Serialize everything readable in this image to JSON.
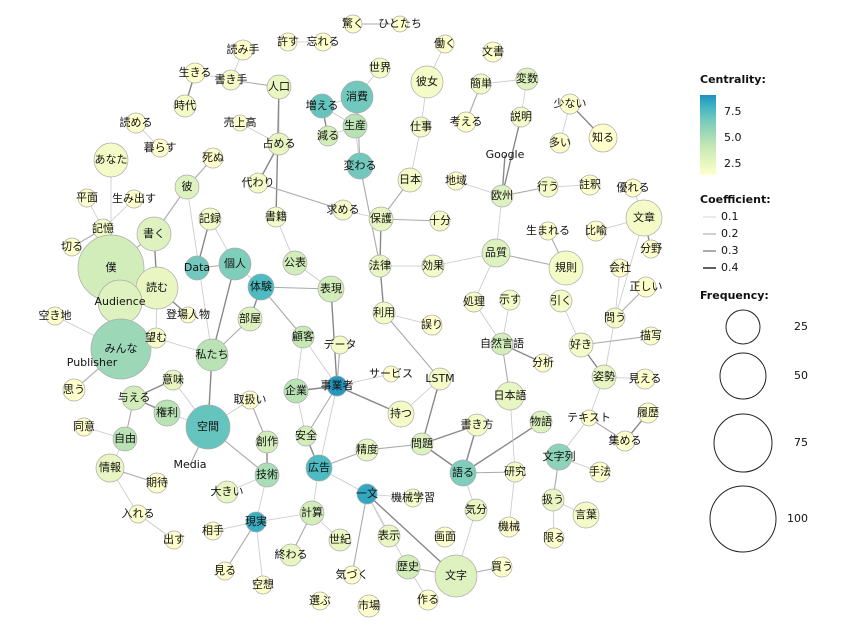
{
  "nodes": [
    {
      "label": "許す"
    },
    {
      "label": "忘れる"
    },
    {
      "label": "驚く"
    },
    {
      "label": "ひとたち"
    },
    {
      "label": "働く"
    },
    {
      "label": "文書"
    },
    {
      "label": "読み手"
    },
    {
      "label": "生きる"
    },
    {
      "label": "書き手"
    },
    {
      "label": "人口"
    },
    {
      "label": "世界"
    },
    {
      "label": "彼女"
    },
    {
      "label": "簡単"
    },
    {
      "label": "変数"
    },
    {
      "label": "少ない"
    },
    {
      "label": "時代"
    },
    {
      "label": "消費"
    },
    {
      "label": "増える"
    },
    {
      "label": "売上高"
    },
    {
      "label": "読める"
    },
    {
      "label": "暮らす"
    },
    {
      "label": "減る"
    },
    {
      "label": "生産"
    },
    {
      "label": "考える"
    },
    {
      "label": "説明"
    },
    {
      "label": "多い"
    },
    {
      "label": "知る"
    },
    {
      "label": "占める"
    },
    {
      "label": "仕事"
    },
    {
      "label": "変わる"
    },
    {
      "label": "あなた"
    },
    {
      "label": "死ぬ"
    },
    {
      "label": "Google"
    },
    {
      "label": "日本"
    },
    {
      "label": "地域"
    },
    {
      "label": "行う"
    },
    {
      "label": "註釈"
    },
    {
      "label": "優れる"
    },
    {
      "label": "彼"
    },
    {
      "label": "代わり"
    },
    {
      "label": "欧州"
    },
    {
      "label": "平面"
    },
    {
      "label": "生み出す"
    },
    {
      "label": "文章"
    },
    {
      "label": "記録"
    },
    {
      "label": "書籍"
    },
    {
      "label": "求める"
    },
    {
      "label": "保護"
    },
    {
      "label": "十分"
    },
    {
      "label": "生まれる"
    },
    {
      "label": "比喩"
    },
    {
      "label": "分野"
    },
    {
      "label": "記憶"
    },
    {
      "label": "書く"
    },
    {
      "label": "切る"
    },
    {
      "label": "僕"
    },
    {
      "label": "Data"
    },
    {
      "label": "個人"
    },
    {
      "label": "公表"
    },
    {
      "label": "法律"
    },
    {
      "label": "効果"
    },
    {
      "label": "品質"
    },
    {
      "label": "規則"
    },
    {
      "label": "会社"
    },
    {
      "label": "正しい"
    },
    {
      "label": "読む"
    },
    {
      "label": "体験"
    },
    {
      "label": "表現"
    },
    {
      "label": "処理"
    },
    {
      "label": "示す"
    },
    {
      "label": "引く"
    },
    {
      "label": "Audience"
    },
    {
      "label": "空き地"
    },
    {
      "label": "登場人物"
    },
    {
      "label": "部屋"
    },
    {
      "label": "利用"
    },
    {
      "label": "誤り"
    },
    {
      "label": "問う"
    },
    {
      "label": "描写"
    },
    {
      "label": "みんな"
    },
    {
      "label": "望む"
    },
    {
      "label": "顧客"
    },
    {
      "label": "データ"
    },
    {
      "label": "自然言語"
    },
    {
      "label": "好き"
    },
    {
      "label": "私たち"
    },
    {
      "label": "Publisher"
    },
    {
      "label": "分析"
    },
    {
      "label": "意味"
    },
    {
      "label": "サービス"
    },
    {
      "label": "LSTM"
    },
    {
      "label": "事業者"
    },
    {
      "label": "姿勢"
    },
    {
      "label": "見える"
    },
    {
      "label": "思う"
    },
    {
      "label": "企業"
    },
    {
      "label": "与える"
    },
    {
      "label": "日本語"
    },
    {
      "label": "取扱い"
    },
    {
      "label": "持つ"
    },
    {
      "label": "権利"
    },
    {
      "label": "空間"
    },
    {
      "label": "物語"
    },
    {
      "label": "テキスト"
    },
    {
      "label": "履歴"
    },
    {
      "label": "同意"
    },
    {
      "label": "書き方"
    },
    {
      "label": "自由"
    },
    {
      "label": "創作"
    },
    {
      "label": "安全"
    },
    {
      "label": "問題"
    },
    {
      "label": "精度"
    },
    {
      "label": "集める"
    },
    {
      "label": "文字列"
    },
    {
      "label": "情報"
    },
    {
      "label": "Media"
    },
    {
      "label": "技術"
    },
    {
      "label": "広告"
    },
    {
      "label": "語る"
    },
    {
      "label": "研究"
    },
    {
      "label": "手法"
    },
    {
      "label": "期待"
    },
    {
      "label": "大きい"
    },
    {
      "label": "一文"
    },
    {
      "label": "機械学習"
    },
    {
      "label": "気分"
    },
    {
      "label": "扱う"
    },
    {
      "label": "言葉"
    },
    {
      "label": "入れる"
    },
    {
      "label": "相手"
    },
    {
      "label": "現実"
    },
    {
      "label": "計算"
    },
    {
      "label": "機械"
    },
    {
      "label": "出す"
    },
    {
      "label": "表示"
    },
    {
      "label": "画面"
    },
    {
      "label": "限る"
    },
    {
      "label": "終わる"
    },
    {
      "label": "世紀"
    },
    {
      "label": "見る"
    },
    {
      "label": "空想"
    },
    {
      "label": "気づく"
    },
    {
      "label": "歴史"
    },
    {
      "label": "文字"
    },
    {
      "label": "買う"
    },
    {
      "label": "作る"
    },
    {
      "label": "選ぶ"
    },
    {
      "label": "市場"
    }
  ],
  "legend": {
    "centrality": {
      "title": "Centrality:",
      "ticks": [
        "7.5",
        "5.0",
        "2.5"
      ]
    },
    "coefficient": {
      "title": "Coefficient:",
      "ticks": [
        "0.1",
        "0.2",
        "0.3",
        "0.4"
      ]
    },
    "frequency": {
      "title": "Frequency:",
      "ticks": [
        "25",
        "50",
        "75",
        "100"
      ]
    }
  }
}
